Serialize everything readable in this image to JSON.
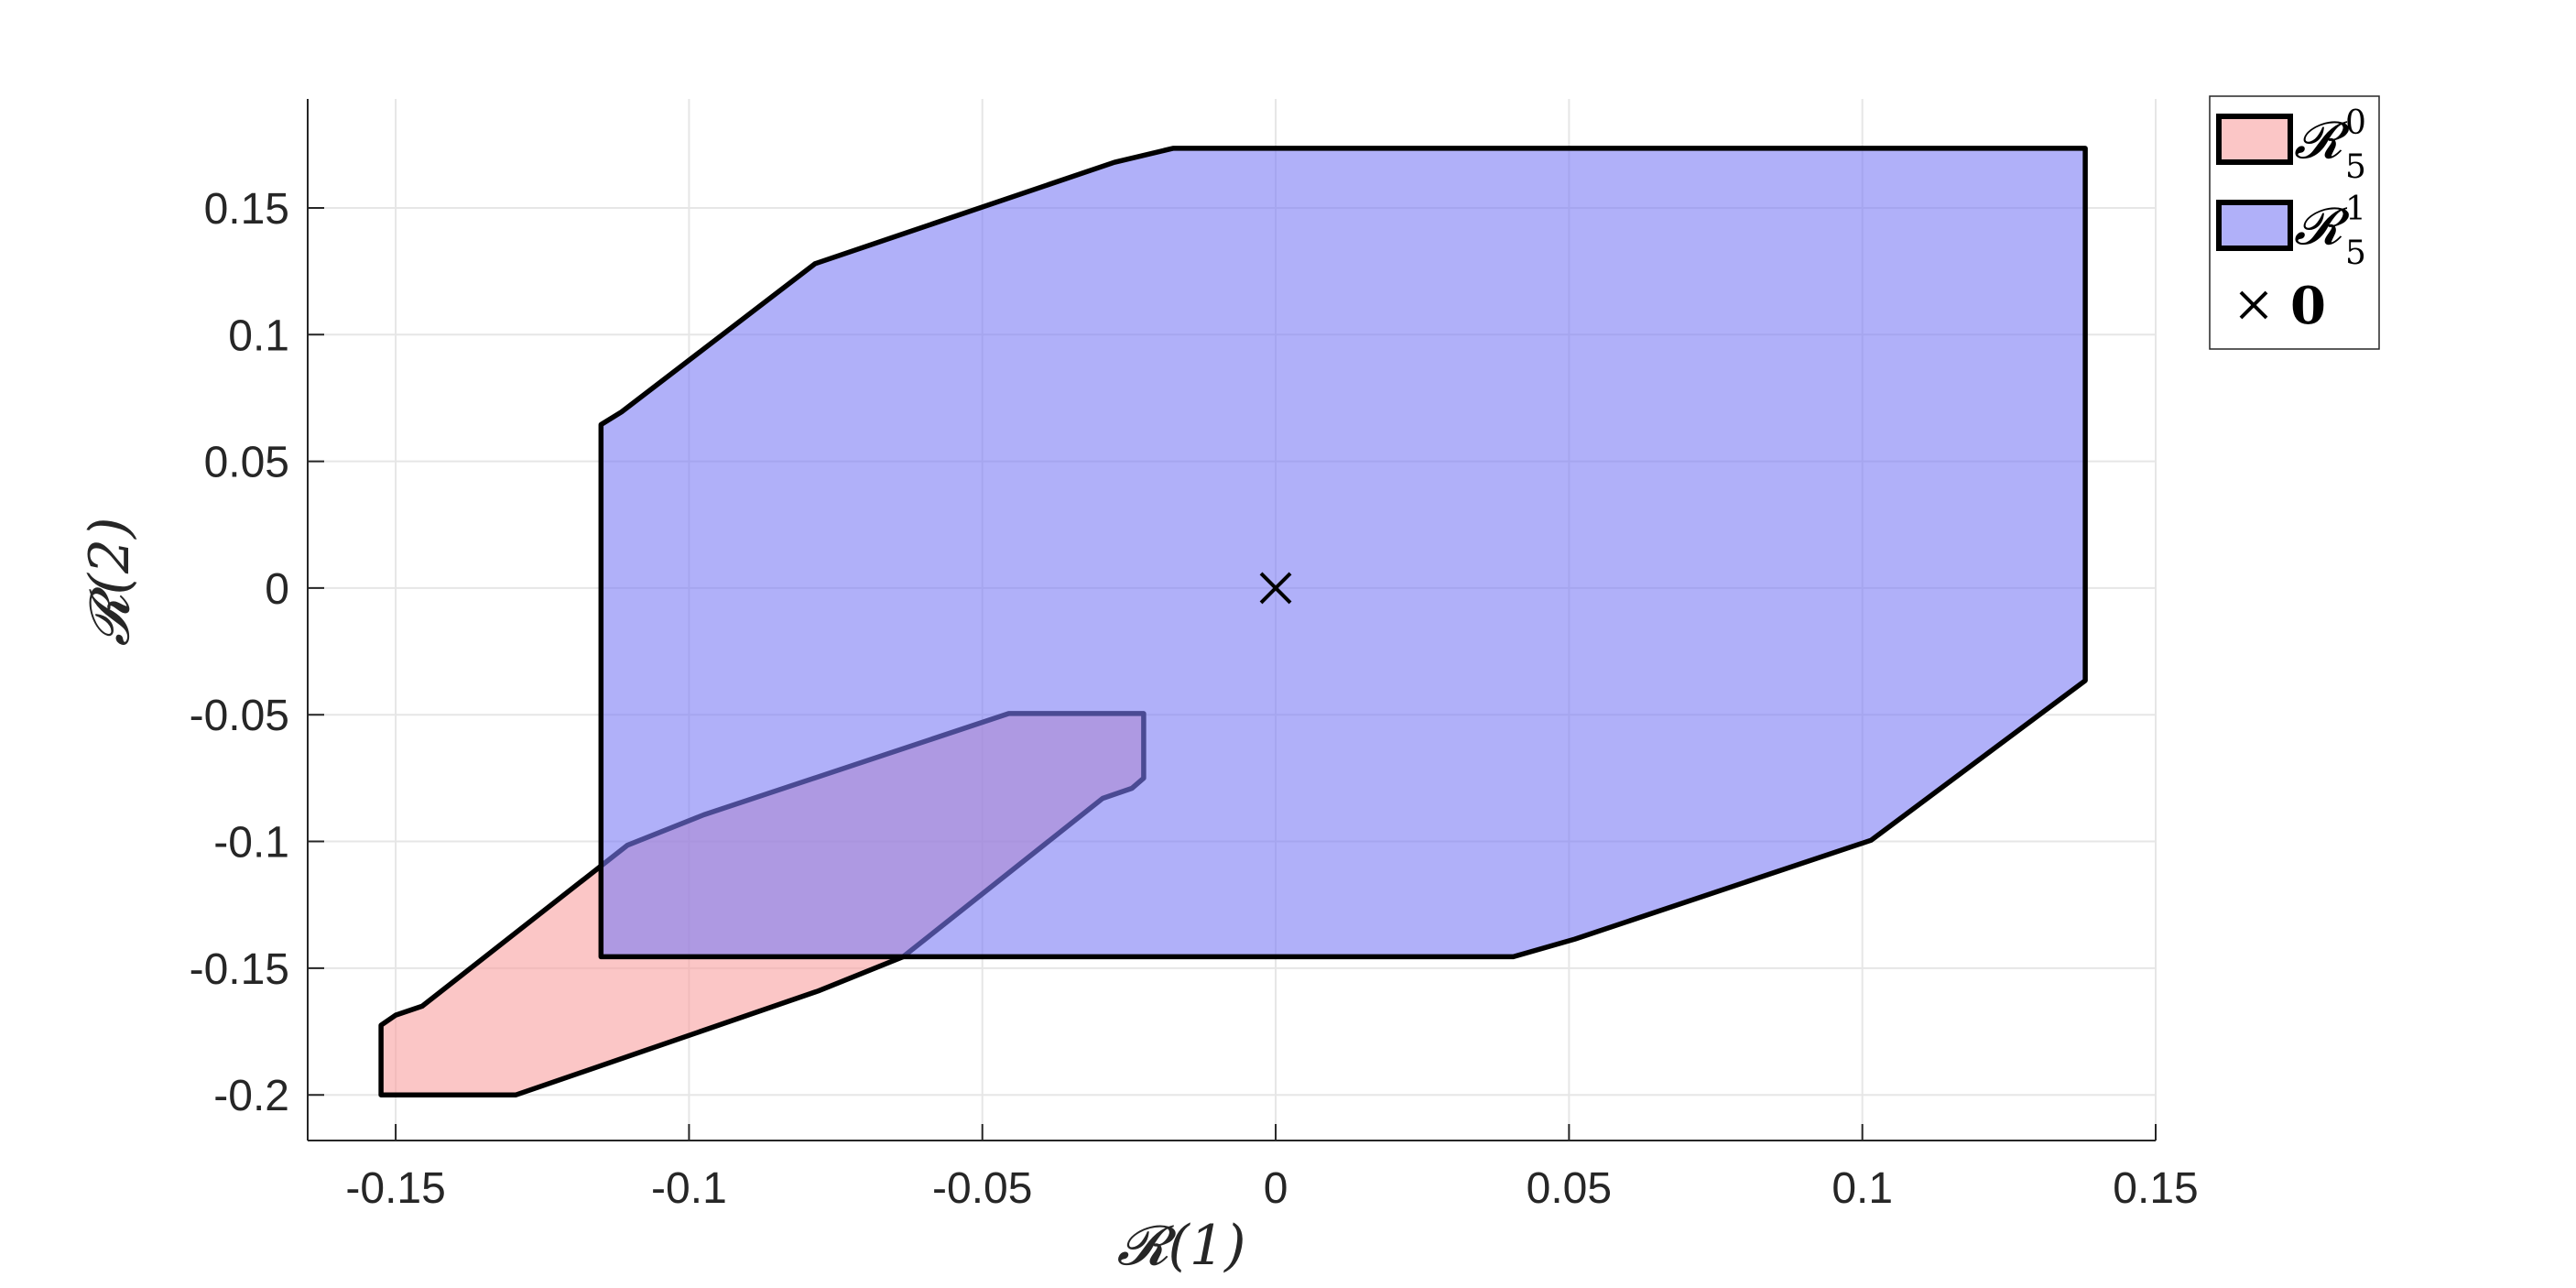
{
  "chart_data": {
    "type": "area",
    "xlabel": "𝓡(1)",
    "ylabel": "𝓡(2)",
    "xlim": [
      -0.165,
      0.15
    ],
    "ylim": [
      -0.218,
      0.193
    ],
    "xticks": [
      -0.15,
      -0.1,
      -0.05,
      0,
      0.05,
      0.1,
      0.15
    ],
    "xtick_labels": [
      "-0.15",
      "-0.1",
      "-0.05",
      "0",
      "0.05",
      "0.1",
      "0.15"
    ],
    "yticks": [
      -0.2,
      -0.15,
      -0.1,
      -0.05,
      0,
      0.05,
      0.1,
      0.15
    ],
    "ytick_labels": [
      "-0.2",
      "-0.15",
      "-0.1",
      "-0.05",
      "0",
      "0.05",
      "0.1",
      "0.15"
    ],
    "grid": true,
    "legend_position": "top-right, outside plot",
    "series": [
      {
        "name": "𝓡",
        "sub": "5",
        "sup": "0",
        "color": "#f8a0a0",
        "points": [
          [
            -0.1525,
            -0.2
          ],
          [
            -0.1525,
            -0.1725
          ],
          [
            -0.15,
            -0.1685
          ],
          [
            -0.1455,
            -0.165
          ],
          [
            -0.1105,
            -0.1015
          ],
          [
            -0.0975,
            -0.0895
          ],
          [
            -0.0455,
            -0.0495
          ],
          [
            -0.0225,
            -0.0495
          ],
          [
            -0.0225,
            -0.075
          ],
          [
            -0.0245,
            -0.079
          ],
          [
            -0.0295,
            -0.083
          ],
          [
            -0.0635,
            -0.1455
          ],
          [
            -0.078,
            -0.159
          ],
          [
            -0.1295,
            -0.2
          ]
        ]
      },
      {
        "name": "𝓡",
        "sub": "5",
        "sup": "1",
        "color": "#7b7bf5",
        "points": [
          [
            -0.115,
            -0.1455
          ],
          [
            -0.115,
            0.0645
          ],
          [
            -0.1115,
            0.0695
          ],
          [
            -0.0785,
            0.128
          ],
          [
            -0.0275,
            0.168
          ],
          [
            -0.0175,
            0.1735
          ],
          [
            0.138,
            0.1735
          ],
          [
            0.138,
            -0.0365
          ],
          [
            0.1015,
            -0.0995
          ],
          [
            0.051,
            -0.1385
          ],
          [
            0.0405,
            -0.1455
          ]
        ]
      },
      {
        "name": "0",
        "type": "scatter",
        "marker": "x",
        "color": "#000000",
        "points": [
          [
            0,
            0
          ]
        ]
      }
    ]
  }
}
